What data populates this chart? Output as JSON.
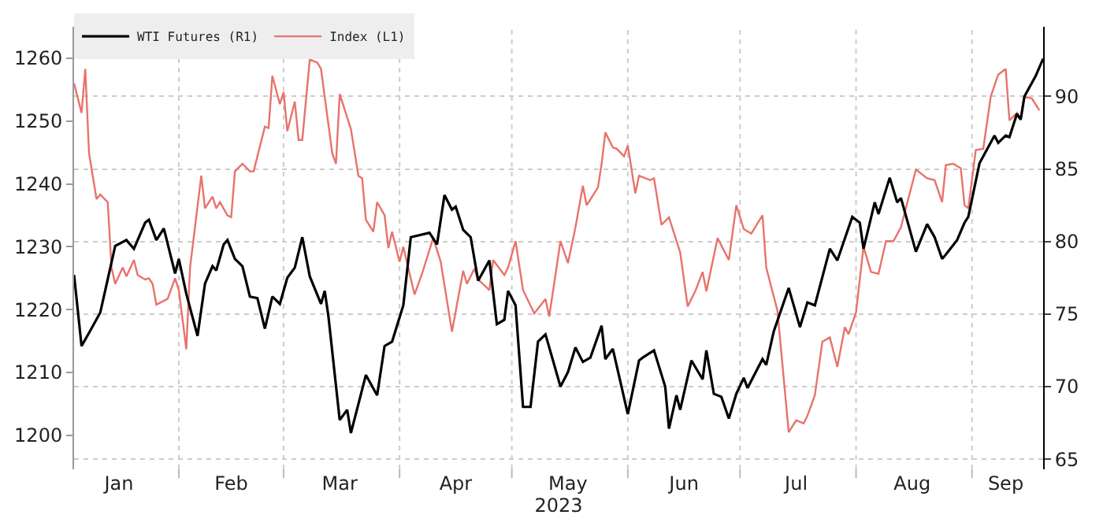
{
  "chart_data": {
    "type": "line",
    "xlabel": "2023",
    "xlim": [
      "2023-01-04",
      "2023-09-20"
    ],
    "xticks": [
      {
        "value": "2023-01-16",
        "label": "Jan"
      },
      {
        "value": "2023-02-01",
        "label": null
      },
      {
        "value": "2023-02-15",
        "label": "Feb"
      },
      {
        "value": "2023-03-01",
        "label": null
      },
      {
        "value": "2023-03-16",
        "label": "Mar"
      },
      {
        "value": "2023-04-01",
        "label": null
      },
      {
        "value": "2023-04-16",
        "label": "Apr"
      },
      {
        "value": "2023-05-01",
        "label": null
      },
      {
        "value": "2023-05-16",
        "label": "May"
      },
      {
        "value": "2023-06-01",
        "label": null
      },
      {
        "value": "2023-06-16",
        "label": "Jun"
      },
      {
        "value": "2023-07-01",
        "label": null
      },
      {
        "value": "2023-07-16",
        "label": "Jul"
      },
      {
        "value": "2023-08-01",
        "label": null
      },
      {
        "value": "2023-08-16",
        "label": "Aug"
      },
      {
        "value": "2023-09-01",
        "label": null
      },
      {
        "value": "2023-09-10",
        "label": "Sep"
      }
    ],
    "ylim": [
      1194.6,
      1265
    ],
    "yticks": [
      1200,
      1210,
      1220,
      1230,
      1240,
      1250,
      1260
    ],
    "y2lim": [
      64.3,
      94.8
    ],
    "y2ticks": [
      65,
      70,
      75,
      80,
      85,
      90
    ],
    "grid": true,
    "legend": "top left",
    "marker": "none",
    "line_style": "solid",
    "series": [
      {
        "name": "WTI Futures (R1)",
        "color": "#000000",
        "axis": "y2",
        "x": [
          "2023-01-04",
          "2023-01-06",
          "2023-01-08",
          "2023-01-11",
          "2023-01-13",
          "2023-01-15",
          "2023-01-18",
          "2023-01-20",
          "2023-01-23",
          "2023-01-24",
          "2023-01-26",
          "2023-01-28",
          "2023-01-31",
          "2023-02-01",
          "2023-02-03",
          "2023-02-06",
          "2023-02-08",
          "2023-02-10",
          "2023-02-11",
          "2023-02-13",
          "2023-02-14",
          "2023-02-16",
          "2023-02-18",
          "2023-02-20",
          "2023-02-22",
          "2023-02-24",
          "2023-02-26",
          "2023-02-28",
          "2023-03-02",
          "2023-03-04",
          "2023-03-06",
          "2023-03-08",
          "2023-03-11",
          "2023-03-12",
          "2023-03-13",
          "2023-03-16",
          "2023-03-18",
          "2023-03-19",
          "2023-03-23",
          "2023-03-26",
          "2023-03-28",
          "2023-03-30",
          "2023-04-02",
          "2023-04-04",
          "2023-04-09",
          "2023-04-11",
          "2023-04-13",
          "2023-04-15",
          "2023-04-16",
          "2023-04-18",
          "2023-04-20",
          "2023-04-22",
          "2023-04-25",
          "2023-04-27",
          "2023-04-29",
          "2023-04-30",
          "2023-05-02",
          "2023-05-04",
          "2023-05-06",
          "2023-05-08",
          "2023-05-10",
          "2023-05-14",
          "2023-05-16",
          "2023-05-18",
          "2023-05-20",
          "2023-05-22",
          "2023-05-25",
          "2023-05-26",
          "2023-05-28",
          "2023-06-01",
          "2023-06-04",
          "2023-06-05",
          "2023-06-08",
          "2023-06-11",
          "2023-06-12",
          "2023-06-14",
          "2023-06-15",
          "2023-06-18",
          "2023-06-21",
          "2023-06-22",
          "2023-06-24",
          "2023-06-26",
          "2023-06-28",
          "2023-06-30",
          "2023-07-02",
          "2023-07-03",
          "2023-07-07",
          "2023-07-08",
          "2023-07-10",
          "2023-07-14",
          "2023-07-17",
          "2023-07-19",
          "2023-07-21",
          "2023-07-25",
          "2023-07-27",
          "2023-07-29",
          "2023-07-31",
          "2023-08-02",
          "2023-08-03",
          "2023-08-06",
          "2023-08-07",
          "2023-08-10",
          "2023-08-12",
          "2023-08-13",
          "2023-08-17",
          "2023-08-20",
          "2023-08-22",
          "2023-08-24",
          "2023-08-25",
          "2023-08-28",
          "2023-08-30",
          "2023-08-31",
          "2023-09-03",
          "2023-09-07",
          "2023-09-08",
          "2023-09-10",
          "2023-09-11",
          "2023-09-13",
          "2023-09-14",
          "2023-09-15",
          "2023-09-18",
          "2023-09-20"
        ],
        "values": [
          77.7,
          72.8,
          73.7,
          75.1,
          77.4,
          79.7,
          80.1,
          79.5,
          81.3,
          81.5,
          80.1,
          80.9,
          77.8,
          78.8,
          76.4,
          73.5,
          77.1,
          78.3,
          78.0,
          79.8,
          80.1,
          78.8,
          78.3,
          76.2,
          76.1,
          74.0,
          76.2,
          75.7,
          77.5,
          78.2,
          80.3,
          77.6,
          75.7,
          76.6,
          74.8,
          67.7,
          68.4,
          66.8,
          70.8,
          69.4,
          72.8,
          73.1,
          75.6,
          80.3,
          80.6,
          79.8,
          83.2,
          82.2,
          82.4,
          80.8,
          80.3,
          77.3,
          78.7,
          74.3,
          74.6,
          76.6,
          75.6,
          68.6,
          68.6,
          73.1,
          73.6,
          70.0,
          71.0,
          72.7,
          71.7,
          72.0,
          74.2,
          71.9,
          72.6,
          68.1,
          71.8,
          72.0,
          72.5,
          70.0,
          67.1,
          69.4,
          68.4,
          71.8,
          70.5,
          72.5,
          69.5,
          69.3,
          67.8,
          69.5,
          70.6,
          69.9,
          71.9,
          71.5,
          73.8,
          76.8,
          74.1,
          75.8,
          75.6,
          79.5,
          78.7,
          80.2,
          81.7,
          81.3,
          79.5,
          82.7,
          81.9,
          84.4,
          82.7,
          83.0,
          79.3,
          81.2,
          80.3,
          78.8,
          79.1,
          80.1,
          81.3,
          81.7,
          85.4,
          87.3,
          86.8,
          87.3,
          87.2,
          88.8,
          88.4,
          90.0,
          91.4,
          92.6
        ]
      },
      {
        "name": "Index (L1)",
        "color": "#e8736c",
        "x": [
          "2023-01-04",
          "2023-01-06",
          "2023-01-07",
          "2023-01-08",
          "2023-01-10",
          "2023-01-11",
          "2023-01-13",
          "2023-01-14",
          "2023-01-15",
          "2023-01-17",
          "2023-01-18",
          "2023-01-20",
          "2023-01-21",
          "2023-01-23",
          "2023-01-24",
          "2023-01-25",
          "2023-01-26",
          "2023-01-29",
          "2023-01-31",
          "2023-02-01",
          "2023-02-03",
          "2023-02-04",
          "2023-02-07",
          "2023-02-08",
          "2023-02-10",
          "2023-02-11",
          "2023-02-12",
          "2023-02-14",
          "2023-02-15",
          "2023-02-16",
          "2023-02-18",
          "2023-02-20",
          "2023-02-21",
          "2023-02-24",
          "2023-02-25",
          "2023-02-26",
          "2023-02-28",
          "2023-03-01",
          "2023-03-02",
          "2023-03-04",
          "2023-03-05",
          "2023-03-06",
          "2023-03-08",
          "2023-03-10",
          "2023-03-11",
          "2023-03-14",
          "2023-03-15",
          "2023-03-16",
          "2023-03-19",
          "2023-03-21",
          "2023-03-22",
          "2023-03-23",
          "2023-03-25",
          "2023-03-26",
          "2023-03-28",
          "2023-03-29",
          "2023-03-30",
          "2023-04-01",
          "2023-04-02",
          "2023-04-05",
          "2023-04-07",
          "2023-04-10",
          "2023-04-12",
          "2023-04-15",
          "2023-04-18",
          "2023-04-19",
          "2023-04-21",
          "2023-04-22",
          "2023-04-25",
          "2023-04-26",
          "2023-04-29",
          "2023-04-30",
          "2023-05-02",
          "2023-05-04",
          "2023-05-07",
          "2023-05-10",
          "2023-05-11",
          "2023-05-14",
          "2023-05-16",
          "2023-05-18",
          "2023-05-20",
          "2023-05-21",
          "2023-05-24",
          "2023-05-25",
          "2023-05-26",
          "2023-05-28",
          "2023-05-29",
          "2023-05-31",
          "2023-06-01",
          "2023-06-03",
          "2023-06-04",
          "2023-06-07",
          "2023-06-08",
          "2023-06-10",
          "2023-06-12",
          "2023-06-15",
          "2023-06-17",
          "2023-06-19",
          "2023-06-21",
          "2023-06-22",
          "2023-06-25",
          "2023-06-26",
          "2023-06-28",
          "2023-06-30",
          "2023-07-02",
          "2023-07-04",
          "2023-07-07",
          "2023-07-08",
          "2023-07-11",
          "2023-07-14",
          "2023-07-16",
          "2023-07-18",
          "2023-07-19",
          "2023-07-21",
          "2023-07-23",
          "2023-07-25",
          "2023-07-27",
          "2023-07-29",
          "2023-07-30",
          "2023-08-01",
          "2023-08-03",
          "2023-08-05",
          "2023-08-07",
          "2023-08-09",
          "2023-08-11",
          "2023-08-13",
          "2023-08-17",
          "2023-08-20",
          "2023-08-22",
          "2023-08-24",
          "2023-08-25",
          "2023-08-27",
          "2023-08-29",
          "2023-08-30",
          "2023-08-31",
          "2023-09-02",
          "2023-09-04",
          "2023-09-06",
          "2023-09-08",
          "2023-09-10",
          "2023-09-11",
          "2023-09-13",
          "2023-09-14",
          "2023-09-15",
          "2023-09-17",
          "2023-09-19"
        ],
        "values": [
          1256.0,
          1251.3,
          1258.3,
          1244.9,
          1237.6,
          1238.3,
          1237.1,
          1226.7,
          1224.1,
          1226.7,
          1225.3,
          1227.9,
          1225.5,
          1224.8,
          1225.0,
          1224.1,
          1220.8,
          1221.7,
          1225.0,
          1223.1,
          1213.7,
          1226.7,
          1241.3,
          1236.1,
          1238.0,
          1236.1,
          1237.1,
          1235.0,
          1234.7,
          1242.0,
          1243.2,
          1242.0,
          1242.0,
          1249.1,
          1248.9,
          1257.2,
          1252.7,
          1254.6,
          1248.4,
          1253.1,
          1247.0,
          1247.0,
          1259.8,
          1259.3,
          1258.3,
          1244.9,
          1243.2,
          1254.3,
          1248.7,
          1241.3,
          1240.9,
          1234.3,
          1232.4,
          1237.1,
          1235.0,
          1229.8,
          1232.4,
          1227.6,
          1230.0,
          1222.4,
          1225.7,
          1231.4,
          1227.6,
          1216.5,
          1226.2,
          1224.1,
          1226.5,
          1224.8,
          1223.1,
          1227.9,
          1225.5,
          1226.7,
          1230.9,
          1223.1,
          1219.4,
          1221.7,
          1218.9,
          1230.9,
          1227.4,
          1233.1,
          1239.7,
          1236.6,
          1239.4,
          1243.2,
          1248.2,
          1245.8,
          1245.6,
          1244.4,
          1246.1,
          1238.5,
          1241.3,
          1240.6,
          1240.9,
          1233.5,
          1234.7,
          1229.1,
          1220.5,
          1222.9,
          1226.0,
          1222.9,
          1231.4,
          1230.2,
          1227.9,
          1236.6,
          1232.8,
          1232.1,
          1235.0,
          1226.7,
          1219.8,
          1200.5,
          1202.4,
          1201.9,
          1203.1,
          1206.4,
          1214.9,
          1215.6,
          1210.9,
          1217.2,
          1216.1,
          1219.6,
          1230.0,
          1226.0,
          1225.7,
          1230.9,
          1230.9,
          1233.1,
          1242.3,
          1240.9,
          1240.6,
          1237.1,
          1243.0,
          1243.2,
          1242.5,
          1236.6,
          1236.1,
          1245.4,
          1245.6,
          1253.9,
          1257.4,
          1258.3,
          1250.1,
          1251.3,
          1250.4,
          1253.9,
          1253.6,
          1251.7
        ]
      }
    ]
  }
}
